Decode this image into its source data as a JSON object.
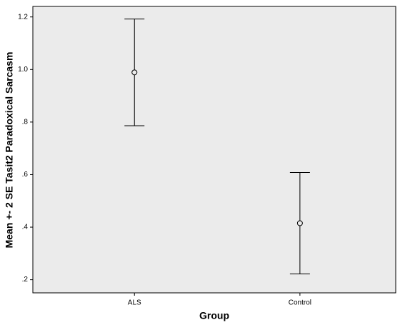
{
  "chart_data": {
    "type": "errorbar",
    "y_label": "Mean +- 2 SE Tasit2 Paradoxical Sarcasm",
    "x_label": "Group",
    "categories": [
      "ALS",
      "Control"
    ],
    "values": [
      0.989,
      0.415
    ],
    "errors": [
      0.203,
      0.193
    ],
    "ylim": [
      0.15,
      1.24
    ],
    "yticks": [
      {
        "value": 0.2,
        "label": ".2"
      },
      {
        "value": 0.4,
        "label": ".4"
      },
      {
        "value": 0.6,
        "label": ".6"
      },
      {
        "value": 0.8,
        "label": ".8"
      },
      {
        "value": 1.0,
        "label": "1.0"
      },
      1.2
    ],
    "background": "#ebebeb",
    "color": "#000000"
  }
}
